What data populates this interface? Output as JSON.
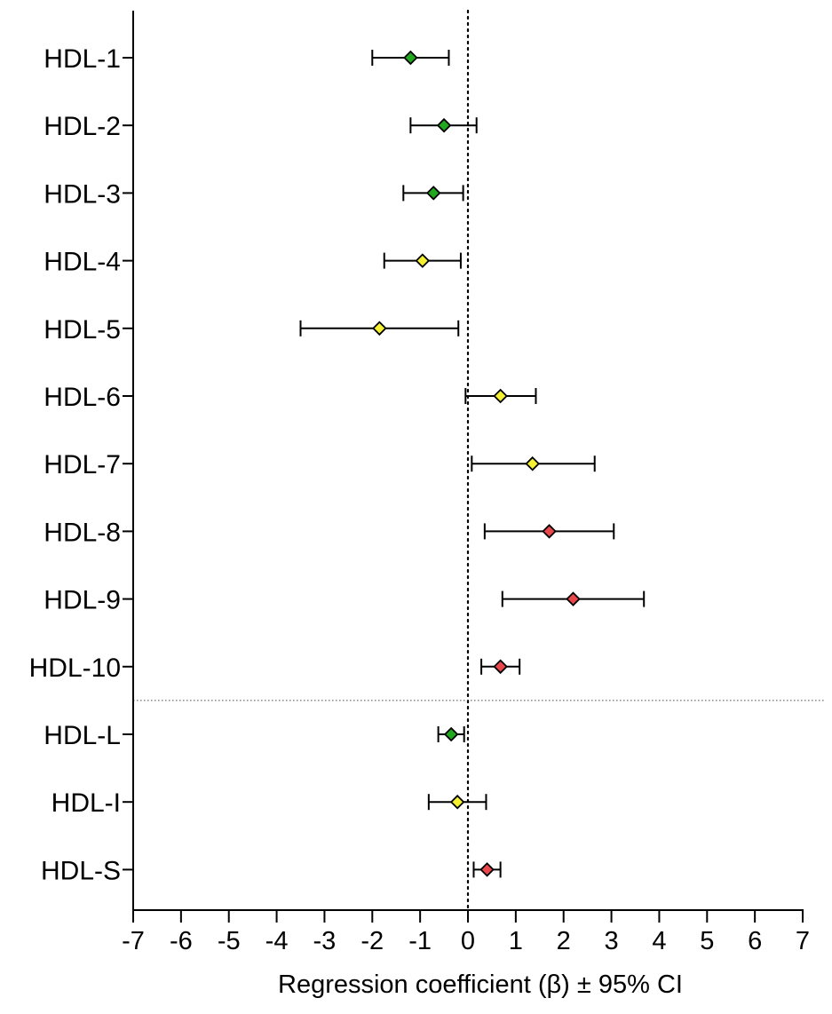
{
  "chart_data": {
    "type": "forest",
    "xlabel": "Regression coefficient (β) ± 95% CI",
    "xlim": [
      -7,
      7
    ],
    "xticks": [
      -7,
      -6,
      -5,
      -4,
      -3,
      -2,
      -1,
      0,
      1,
      2,
      3,
      4,
      5,
      6,
      7
    ],
    "reference_line": 0,
    "separator_after_index": 9,
    "grid": false,
    "colors": {
      "green": "#22a81e",
      "yellow": "#f5f032",
      "red": "#e8484c"
    },
    "rows": [
      {
        "label": "HDL-1",
        "estimate": -1.2,
        "lower": -2.0,
        "upper": -0.4,
        "color": "green"
      },
      {
        "label": "HDL-2",
        "estimate": -0.5,
        "lower": -1.2,
        "upper": 0.18,
        "color": "green"
      },
      {
        "label": "HDL-3",
        "estimate": -0.72,
        "lower": -1.35,
        "upper": -0.1,
        "color": "green"
      },
      {
        "label": "HDL-4",
        "estimate": -0.95,
        "lower": -1.75,
        "upper": -0.15,
        "color": "yellow"
      },
      {
        "label": "HDL-5",
        "estimate": -1.85,
        "lower": -3.5,
        "upper": -0.2,
        "color": "yellow"
      },
      {
        "label": "HDL-6",
        "estimate": 0.68,
        "lower": -0.05,
        "upper": 1.42,
        "color": "yellow"
      },
      {
        "label": "HDL-7",
        "estimate": 1.35,
        "lower": 0.08,
        "upper": 2.65,
        "color": "yellow"
      },
      {
        "label": "HDL-8",
        "estimate": 1.7,
        "lower": 0.35,
        "upper": 3.05,
        "color": "red"
      },
      {
        "label": "HDL-9",
        "estimate": 2.2,
        "lower": 0.72,
        "upper": 3.68,
        "color": "red"
      },
      {
        "label": "HDL-10",
        "estimate": 0.68,
        "lower": 0.28,
        "upper": 1.08,
        "color": "red"
      },
      {
        "label": "HDL-L",
        "estimate": -0.35,
        "lower": -0.62,
        "upper": -0.08,
        "color": "green"
      },
      {
        "label": "HDL-I",
        "estimate": -0.22,
        "lower": -0.82,
        "upper": 0.38,
        "color": "yellow"
      },
      {
        "label": "HDL-S",
        "estimate": 0.4,
        "lower": 0.12,
        "upper": 0.68,
        "color": "red"
      }
    ]
  }
}
